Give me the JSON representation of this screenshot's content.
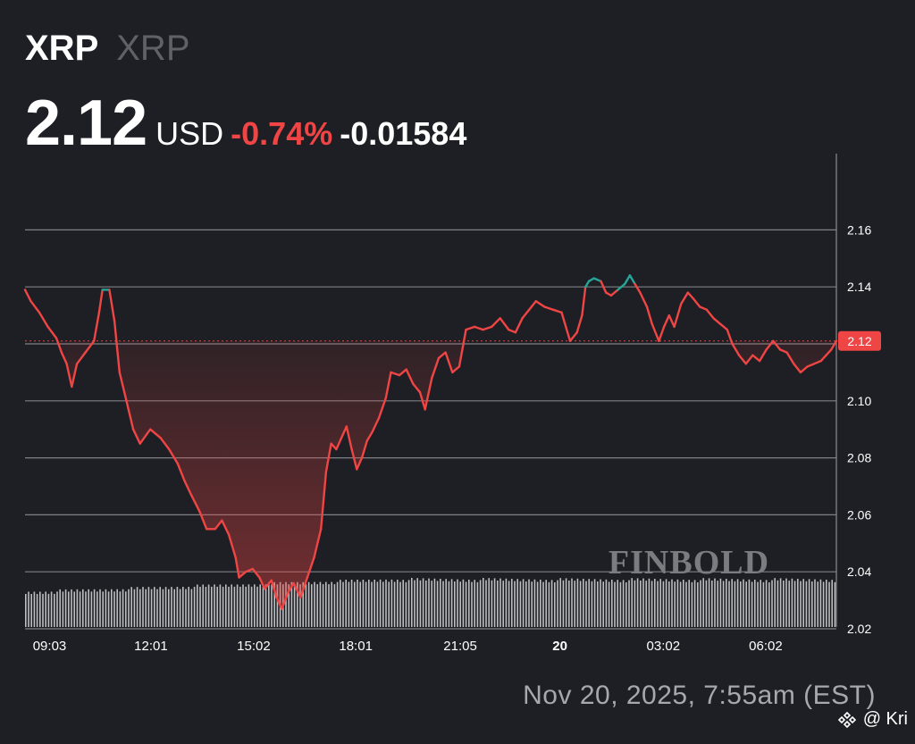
{
  "header": {
    "ticker": "XRP",
    "asset_name": "XRP",
    "price": "2.12",
    "currency": "USD",
    "change_percent": "-0.74%",
    "change_absolute": "-0.01584"
  },
  "timestamp": "Nov 20, 2025, 7:55am (EST)",
  "watermark": "FINBOLD",
  "credit": "@ Kri",
  "colors": {
    "background": "#1e1f24",
    "price_line_down": "#ef4544",
    "price_line_up": "#26a69a",
    "grid": "#8a8b90",
    "volume": "#d9dadc",
    "price_badge": "#ef4544"
  },
  "chart_data": {
    "type": "line",
    "title": "",
    "xlabel": "",
    "ylabel": "",
    "y_axis_position": "right",
    "ylim": [
      2.01,
      2.18
    ],
    "yticks": [
      2.02,
      2.04,
      2.06,
      2.08,
      2.1,
      2.12,
      2.14,
      2.16
    ],
    "ytick_labels": [
      "2.02",
      "2.04",
      "2.06",
      "2.08",
      "2.10",
      "2.12",
      "2.14",
      "2.16"
    ],
    "xlim": [
      8.33,
      32.1
    ],
    "xticks": [
      9.05,
      12.02,
      15.03,
      18.02,
      21.08,
      24.0,
      27.03,
      30.03
    ],
    "xtick_labels": [
      "09:03",
      "12:01",
      "15:02",
      "18:01",
      "21:05",
      "20",
      "03:02",
      "06:02"
    ],
    "xtick_bold": [
      "20"
    ],
    "x_unit": "hours since 00:00 Nov 19, 2025 (EST)",
    "current_price": 2.121,
    "current_price_label": "2.12",
    "series": [
      {
        "values": [
          [
            8.33,
            2.139
          ],
          [
            8.5,
            2.135
          ],
          [
            8.75,
            2.131
          ],
          [
            9.0,
            2.126
          ],
          [
            9.25,
            2.122
          ],
          [
            9.4,
            2.117
          ],
          [
            9.55,
            2.113
          ],
          [
            9.7,
            2.105
          ],
          [
            9.85,
            2.113
          ],
          [
            10.1,
            2.117
          ],
          [
            10.35,
            2.121
          ],
          [
            10.5,
            2.131
          ],
          [
            10.6,
            2.139
          ],
          [
            10.8,
            2.139
          ],
          [
            10.95,
            2.128
          ],
          [
            11.1,
            2.11
          ],
          [
            11.3,
            2.1
          ],
          [
            11.5,
            2.09
          ],
          [
            11.7,
            2.085
          ],
          [
            12.0,
            2.09
          ],
          [
            12.3,
            2.087
          ],
          [
            12.55,
            2.083
          ],
          [
            12.8,
            2.078
          ],
          [
            13.0,
            2.072
          ],
          [
            13.2,
            2.067
          ],
          [
            13.45,
            2.061
          ],
          [
            13.65,
            2.055
          ],
          [
            13.9,
            2.055
          ],
          [
            14.1,
            2.058
          ],
          [
            14.3,
            2.053
          ],
          [
            14.5,
            2.045
          ],
          [
            14.6,
            2.038
          ],
          [
            14.8,
            2.04
          ],
          [
            15.0,
            2.041
          ],
          [
            15.2,
            2.038
          ],
          [
            15.35,
            2.034
          ],
          [
            15.55,
            2.037
          ],
          [
            15.7,
            2.031
          ],
          [
            15.85,
            2.027
          ],
          [
            16.05,
            2.033
          ],
          [
            16.2,
            2.036
          ],
          [
            16.4,
            2.031
          ],
          [
            16.6,
            2.038
          ],
          [
            16.8,
            2.045
          ],
          [
            17.0,
            2.055
          ],
          [
            17.15,
            2.075
          ],
          [
            17.3,
            2.085
          ],
          [
            17.45,
            2.083
          ],
          [
            17.6,
            2.087
          ],
          [
            17.75,
            2.091
          ],
          [
            17.9,
            2.083
          ],
          [
            18.05,
            2.076
          ],
          [
            18.2,
            2.08
          ],
          [
            18.35,
            2.086
          ],
          [
            18.5,
            2.089
          ],
          [
            18.7,
            2.094
          ],
          [
            18.9,
            2.101
          ],
          [
            19.05,
            2.11
          ],
          [
            19.3,
            2.109
          ],
          [
            19.5,
            2.111
          ],
          [
            19.7,
            2.106
          ],
          [
            19.9,
            2.103
          ],
          [
            20.05,
            2.097
          ],
          [
            20.25,
            2.108
          ],
          [
            20.45,
            2.115
          ],
          [
            20.65,
            2.117
          ],
          [
            20.85,
            2.11
          ],
          [
            21.05,
            2.112
          ],
          [
            21.25,
            2.125
          ],
          [
            21.5,
            2.126
          ],
          [
            21.75,
            2.125
          ],
          [
            22.0,
            2.126
          ],
          [
            22.25,
            2.129
          ],
          [
            22.5,
            2.125
          ],
          [
            22.7,
            2.124
          ],
          [
            22.9,
            2.129
          ],
          [
            23.1,
            2.132
          ],
          [
            23.3,
            2.135
          ],
          [
            23.55,
            2.133
          ],
          [
            23.8,
            2.132
          ],
          [
            24.05,
            2.131
          ],
          [
            24.3,
            2.121
          ],
          [
            24.5,
            2.124
          ],
          [
            24.65,
            2.13
          ],
          [
            24.75,
            2.14
          ],
          [
            24.85,
            2.142
          ],
          [
            25.0,
            2.143
          ],
          [
            25.2,
            2.142
          ],
          [
            25.35,
            2.138
          ],
          [
            25.5,
            2.137
          ],
          [
            25.7,
            2.139
          ],
          [
            25.9,
            2.141
          ],
          [
            26.05,
            2.144
          ],
          [
            26.2,
            2.141
          ],
          [
            26.35,
            2.138
          ],
          [
            26.55,
            2.133
          ],
          [
            26.7,
            2.127
          ],
          [
            26.9,
            2.121
          ],
          [
            27.05,
            2.126
          ],
          [
            27.2,
            2.13
          ],
          [
            27.35,
            2.126
          ],
          [
            27.55,
            2.134
          ],
          [
            27.75,
            2.138
          ],
          [
            27.9,
            2.136
          ],
          [
            28.1,
            2.133
          ],
          [
            28.3,
            2.132
          ],
          [
            28.5,
            2.129
          ],
          [
            28.7,
            2.127
          ],
          [
            28.9,
            2.125
          ],
          [
            29.05,
            2.12
          ],
          [
            29.25,
            2.116
          ],
          [
            29.45,
            2.113
          ],
          [
            29.65,
            2.116
          ],
          [
            29.85,
            2.114
          ],
          [
            30.05,
            2.118
          ],
          [
            30.25,
            2.121
          ],
          [
            30.45,
            2.118
          ],
          [
            30.65,
            2.117
          ],
          [
            30.85,
            2.113
          ],
          [
            31.05,
            2.11
          ],
          [
            31.25,
            2.112
          ],
          [
            31.45,
            2.113
          ],
          [
            31.65,
            2.114
          ],
          [
            31.8,
            2.116
          ],
          [
            31.95,
            2.118
          ],
          [
            32.1,
            2.121
          ]
        ]
      }
    ]
  }
}
